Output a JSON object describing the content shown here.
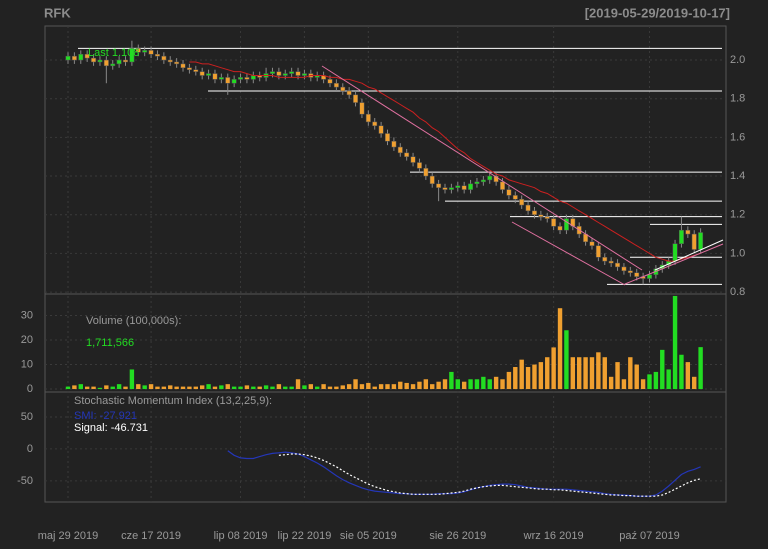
{
  "chart_data": {
    "type": "candlestick",
    "title": "RFK",
    "subtitle": "[2019-05-29/2019-10-17]",
    "categories": [
      "maj 29 2019",
      null,
      null,
      null,
      null,
      null,
      null,
      null,
      null,
      null,
      null,
      null,
      null,
      "cze 17 2019",
      null,
      null,
      null,
      null,
      null,
      null,
      null,
      null,
      null,
      null,
      null,
      null,
      null,
      "lip 08 2019",
      null,
      null,
      null,
      null,
      null,
      null,
      null,
      null,
      null,
      "lip 22 2019",
      null,
      null,
      null,
      null,
      null,
      null,
      null,
      null,
      null,
      "sie 05 2019",
      null,
      null,
      null,
      null,
      null,
      null,
      null,
      null,
      null,
      null,
      null,
      null,
      null,
      "sie 26 2019",
      null,
      null,
      null,
      null,
      null,
      null,
      null,
      null,
      null,
      null,
      null,
      null,
      null,
      null,
      "wrz 16 2019",
      null,
      null,
      null,
      null,
      null,
      null,
      null,
      null,
      null,
      null,
      null,
      null,
      null,
      null,
      "paź 07 2019",
      null,
      null,
      null,
      null,
      null,
      null,
      null,
      null
    ],
    "open": [
      2.0,
      2.02,
      2.0,
      2.03,
      2.01,
      1.99,
      2.0,
      1.97,
      1.98,
      2.0,
      1.99,
      2.06,
      2.04,
      2.05,
      2.03,
      2.02,
      2.0,
      1.99,
      1.98,
      1.96,
      1.95,
      1.94,
      1.92,
      1.93,
      1.9,
      1.91,
      1.88,
      1.9,
      1.91,
      1.9,
      1.92,
      1.91,
      1.93,
      1.94,
      1.92,
      1.93,
      1.94,
      1.92,
      1.93,
      1.91,
      1.92,
      1.9,
      1.88,
      1.86,
      1.84,
      1.82,
      1.78,
      1.72,
      1.68,
      1.66,
      1.62,
      1.58,
      1.55,
      1.52,
      1.5,
      1.47,
      1.44,
      1.4,
      1.36,
      1.34,
      1.33,
      1.34,
      1.35,
      1.33,
      1.36,
      1.37,
      1.38,
      1.4,
      1.37,
      1.33,
      1.3,
      1.28,
      1.25,
      1.22,
      1.2,
      1.19,
      1.18,
      1.14,
      1.12,
      1.18,
      1.14,
      1.1,
      1.06,
      1.04,
      0.98,
      0.96,
      0.95,
      0.93,
      0.91,
      0.9,
      0.88,
      0.87,
      0.89,
      0.92,
      0.94,
      0.96,
      1.05,
      1.12,
      1.1,
      1.02
    ],
    "high": [
      2.04,
      2.04,
      2.05,
      2.05,
      2.03,
      2.02,
      2.02,
      2.0,
      2.02,
      2.02,
      2.1,
      2.08,
      2.07,
      2.07,
      2.05,
      2.04,
      2.02,
      2.01,
      2.0,
      1.98,
      1.97,
      1.96,
      1.95,
      1.95,
      1.93,
      1.93,
      1.92,
      1.93,
      1.93,
      1.94,
      1.94,
      1.96,
      1.96,
      1.96,
      1.95,
      1.96,
      1.96,
      1.95,
      1.95,
      1.94,
      1.94,
      1.92,
      1.9,
      1.88,
      1.86,
      1.84,
      1.8,
      1.74,
      1.7,
      1.68,
      1.64,
      1.6,
      1.57,
      1.54,
      1.52,
      1.49,
      1.46,
      1.42,
      1.38,
      1.36,
      1.36,
      1.37,
      1.37,
      1.38,
      1.39,
      1.4,
      1.42,
      1.42,
      1.39,
      1.35,
      1.32,
      1.3,
      1.27,
      1.24,
      1.22,
      1.21,
      1.2,
      1.16,
      1.2,
      1.2,
      1.16,
      1.12,
      1.08,
      1.06,
      1.0,
      0.98,
      0.97,
      0.95,
      0.93,
      0.92,
      0.9,
      0.91,
      0.94,
      0.96,
      0.98,
      1.07,
      1.19,
      1.14,
      1.12,
      1.13
    ],
    "low": [
      1.98,
      1.98,
      1.98,
      1.99,
      1.97,
      1.97,
      1.88,
      1.95,
      1.96,
      1.97,
      1.97,
      2.02,
      2.02,
      2.01,
      2.0,
      1.98,
      1.97,
      1.96,
      1.94,
      1.93,
      1.92,
      1.9,
      1.9,
      1.88,
      1.88,
      1.82,
      1.86,
      1.88,
      1.88,
      1.88,
      1.89,
      1.89,
      1.91,
      1.9,
      1.9,
      1.91,
      1.9,
      1.9,
      1.89,
      1.89,
      1.88,
      1.86,
      1.84,
      1.82,
      1.8,
      1.76,
      1.7,
      1.66,
      1.64,
      1.6,
      1.56,
      1.53,
      1.5,
      1.48,
      1.45,
      1.42,
      1.38,
      1.34,
      1.27,
      1.31,
      1.31,
      1.32,
      1.31,
      1.31,
      1.34,
      1.35,
      1.36,
      1.35,
      1.31,
      1.28,
      1.26,
      1.23,
      1.2,
      1.18,
      1.17,
      1.16,
      1.12,
      1.1,
      1.1,
      1.12,
      1.08,
      1.04,
      1.02,
      0.96,
      0.94,
      0.93,
      0.91,
      0.89,
      0.88,
      0.86,
      0.84,
      0.85,
      0.87,
      0.9,
      0.92,
      0.94,
      1.03,
      1.08,
      1.0,
      1.0
    ],
    "close": [
      2.02,
      2.0,
      2.03,
      2.01,
      1.99,
      2.0,
      1.97,
      1.98,
      2.0,
      1.99,
      2.06,
      2.04,
      2.05,
      2.03,
      2.02,
      2.0,
      1.99,
      1.98,
      1.96,
      1.95,
      1.94,
      1.92,
      1.93,
      1.9,
      1.91,
      1.88,
      1.9,
      1.91,
      1.9,
      1.92,
      1.91,
      1.93,
      1.94,
      1.92,
      1.93,
      1.94,
      1.92,
      1.93,
      1.91,
      1.92,
      1.9,
      1.88,
      1.86,
      1.84,
      1.82,
      1.78,
      1.72,
      1.68,
      1.66,
      1.62,
      1.58,
      1.55,
      1.52,
      1.5,
      1.47,
      1.44,
      1.4,
      1.36,
      1.34,
      1.33,
      1.34,
      1.35,
      1.33,
      1.36,
      1.37,
      1.38,
      1.4,
      1.37,
      1.33,
      1.3,
      1.28,
      1.25,
      1.22,
      1.2,
      1.19,
      1.18,
      1.14,
      1.12,
      1.18,
      1.14,
      1.1,
      1.06,
      1.04,
      0.98,
      0.96,
      0.95,
      0.93,
      0.91,
      0.9,
      0.88,
      0.87,
      0.89,
      0.92,
      0.94,
      0.96,
      1.05,
      1.12,
      1.1,
      1.02,
      1.108
    ],
    "up_color": "#22dd22",
    "down_color": "#f0a030",
    "last_label": "Last 1.108",
    "sma": {
      "color": "#cc2020",
      "values": [
        null,
        null,
        null,
        null,
        null,
        null,
        null,
        null,
        null,
        null,
        null,
        null,
        null,
        null,
        null,
        null,
        null,
        null,
        null,
        1.99,
        1.99,
        1.98,
        1.98,
        1.97,
        1.96,
        1.95,
        1.94,
        1.94,
        1.93,
        1.92,
        1.92,
        1.92,
        1.92,
        1.91,
        1.91,
        1.91,
        1.91,
        1.91,
        1.92,
        1.92,
        1.92,
        1.91,
        1.91,
        1.9,
        1.9,
        1.89,
        1.88,
        1.86,
        1.85,
        1.83,
        1.81,
        1.79,
        1.77,
        1.75,
        1.73,
        1.7,
        1.68,
        1.65,
        1.63,
        1.6,
        1.57,
        1.54,
        1.52,
        1.49,
        1.47,
        1.45,
        1.43,
        1.41,
        1.4,
        1.38,
        1.37,
        1.36,
        1.35,
        1.34,
        1.32,
        1.31,
        1.29,
        1.27,
        1.26,
        1.24,
        1.22,
        1.2,
        1.18,
        1.16,
        1.14,
        1.12,
        1.1,
        1.08,
        1.06,
        1.04,
        1.02,
        1.0,
        0.98,
        0.97,
        0.96,
        0.96,
        0.97,
        0.98,
        0.99,
        1.0
      ]
    },
    "levels": [
      2.06,
      1.84,
      1.42,
      1.27,
      1.19,
      1.15,
      0.98,
      0.84
    ],
    "level_color": "#ffffff",
    "ylim": [
      0.79,
      2.176
    ],
    "yticks": [
      0.8,
      {
        "value": 1,
        "label": "1.0"
      },
      1.2,
      1.4,
      1.6,
      1.8,
      {
        "value": 2,
        "label": "2.0"
      }
    ],
    "grid": true,
    "volume": {
      "label": "Volume (100,000s):",
      "value_label": "1,711,566",
      "values": [
        1,
        1.5,
        2,
        1,
        1,
        0.5,
        1.5,
        1,
        2,
        1,
        8,
        2,
        1.5,
        2,
        1,
        1,
        1.5,
        1,
        1,
        1,
        1,
        1.5,
        2,
        1,
        1.5,
        2,
        1,
        1,
        1.5,
        1,
        1,
        1.5,
        1,
        2,
        1,
        1,
        4,
        1.5,
        2,
        1,
        2,
        1,
        1,
        1.5,
        2,
        4,
        2,
        2.5,
        1,
        2,
        2,
        2,
        3,
        2.5,
        2,
        3,
        4,
        2,
        3,
        4,
        7,
        4,
        3,
        4,
        4,
        5,
        4,
        5,
        4,
        7,
        9,
        12,
        9,
        10,
        11,
        13,
        17,
        33,
        24,
        13,
        13,
        13,
        13,
        15,
        13,
        5,
        11,
        4,
        13,
        10,
        4,
        6,
        7,
        16,
        8,
        38,
        14,
        11,
        5,
        17.11566
      ],
      "ylim": [
        -1.2,
        38.8
      ],
      "yticks": [
        0,
        10,
        20,
        30
      ]
    },
    "smi": {
      "title": "Stochastic Momentum Index (13,2,25,9):",
      "ylim": [
        -83,
        89
      ],
      "yticks": [
        -50,
        0,
        50
      ],
      "series": [
        {
          "name": "SMI: -27.921",
          "color": "#2436b8",
          "values": [
            null,
            null,
            null,
            null,
            null,
            null,
            null,
            null,
            null,
            null,
            null,
            null,
            null,
            null,
            null,
            null,
            null,
            null,
            null,
            null,
            null,
            null,
            null,
            null,
            null,
            -3,
            -10,
            -14,
            -15,
            -15,
            -12,
            -9,
            -7,
            -6,
            -5,
            -6,
            -8,
            -12,
            -17,
            -22,
            -28,
            -35,
            -42,
            -48,
            -53,
            -57,
            -61,
            -64,
            -66,
            -67,
            -68,
            -69,
            -70,
            -70,
            -71,
            -71,
            -71,
            -71,
            -70,
            -70,
            -70,
            -69,
            -67,
            -64,
            -61,
            -59,
            -57,
            -56,
            -55,
            -55,
            -56,
            -58,
            -60,
            -61,
            -62,
            -63,
            -63,
            -63,
            -63,
            -64,
            -65,
            -66,
            -67,
            -68,
            -70,
            -71,
            -72,
            -72,
            -73,
            -74,
            -74,
            -74,
            -72,
            -66,
            -58,
            -49,
            -40,
            -35,
            -32,
            -27.921
          ]
        },
        {
          "name": "Signal: -46.731",
          "color": "#ffffff",
          "values": [
            null,
            null,
            null,
            null,
            null,
            null,
            null,
            null,
            null,
            null,
            null,
            null,
            null,
            null,
            null,
            null,
            null,
            null,
            null,
            null,
            null,
            null,
            null,
            null,
            null,
            null,
            null,
            null,
            null,
            null,
            null,
            null,
            null,
            -10,
            -9,
            -8,
            -8,
            -9,
            -11,
            -14,
            -18,
            -23,
            -28,
            -34,
            -40,
            -45,
            -50,
            -55,
            -59,
            -62,
            -65,
            -67,
            -69,
            -70,
            -71,
            -71,
            -71,
            -71,
            -71,
            -70,
            -69,
            -68,
            -66,
            -63,
            -61,
            -59,
            -58,
            -57,
            -57,
            -58,
            -59,
            -60,
            -61,
            -62,
            -63,
            -63,
            -64,
            -64,
            -65,
            -66,
            -67,
            -68,
            -69,
            -70,
            -71,
            -72,
            -72,
            -73,
            -73,
            -74,
            -74,
            -74,
            -74,
            -72,
            -68,
            -63,
            -58,
            -53,
            -49,
            -46.731
          ]
        }
      ]
    }
  }
}
